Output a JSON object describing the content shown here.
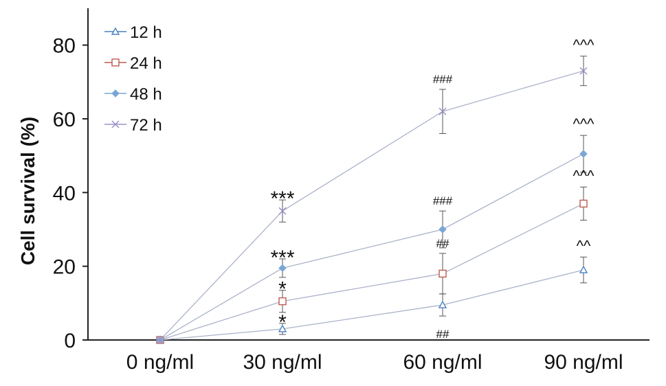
{
  "chart_data": {
    "type": "line",
    "title": "",
    "xlabel": "",
    "ylabel": "Cell survival (%)",
    "ylim": [
      0,
      90
    ],
    "yticks": [
      0,
      20,
      40,
      60,
      80
    ],
    "categories": [
      "0 ng/ml",
      "30 ng/ml",
      "60 ng/ml",
      "90 ng/ml"
    ],
    "grid": false,
    "legend_position": "top-left",
    "series": [
      {
        "name": "12 h",
        "values": [
          0,
          3,
          9.5,
          19
        ],
        "errors": [
          0.5,
          1.5,
          3,
          3.5
        ],
        "color": "#4a7fc0",
        "marker": "triangle"
      },
      {
        "name": "24 h",
        "values": [
          0,
          10.5,
          18,
          37
        ],
        "errors": [
          0.5,
          3,
          5.5,
          4.5
        ],
        "color": "#c05a50",
        "marker": "square"
      },
      {
        "name": "48 h",
        "values": [
          0,
          19.5,
          30,
          50.5
        ],
        "errors": [
          0.5,
          2.5,
          5,
          5
        ],
        "color": "#7aa6d6",
        "marker": "diamond"
      },
      {
        "name": "72 h",
        "values": [
          0,
          35,
          62,
          73
        ],
        "errors": [
          0.5,
          3,
          6,
          4
        ],
        "color": "#9a92c8",
        "marker": "x"
      }
    ],
    "annotations": [
      {
        "category": 1,
        "series": "72 h",
        "text": "***",
        "size": "large"
      },
      {
        "category": 1,
        "series": "48 h",
        "text": "***",
        "size": "large"
      },
      {
        "category": 1,
        "series": "24 h",
        "text": "*",
        "size": "large"
      },
      {
        "category": 1,
        "series": "12 h",
        "text": "*",
        "size": "large"
      },
      {
        "category": 2,
        "series": "72 h",
        "text": "###",
        "size": "small"
      },
      {
        "category": 2,
        "series": "48 h",
        "text": "###",
        "size": "small"
      },
      {
        "category": 2,
        "series": "24 h",
        "text": "##",
        "size": "small"
      },
      {
        "category": 2,
        "series": "12 h",
        "text": "##",
        "size": "small",
        "below": true
      },
      {
        "category": 3,
        "series": "72 h",
        "text": "^^^",
        "size": "medium"
      },
      {
        "category": 3,
        "series": "48 h",
        "text": "^^^",
        "size": "medium"
      },
      {
        "category": 3,
        "series": "24 h",
        "text": "^^^",
        "size": "medium"
      },
      {
        "category": 3,
        "series": "12 h",
        "text": "^^",
        "size": "medium"
      }
    ]
  }
}
